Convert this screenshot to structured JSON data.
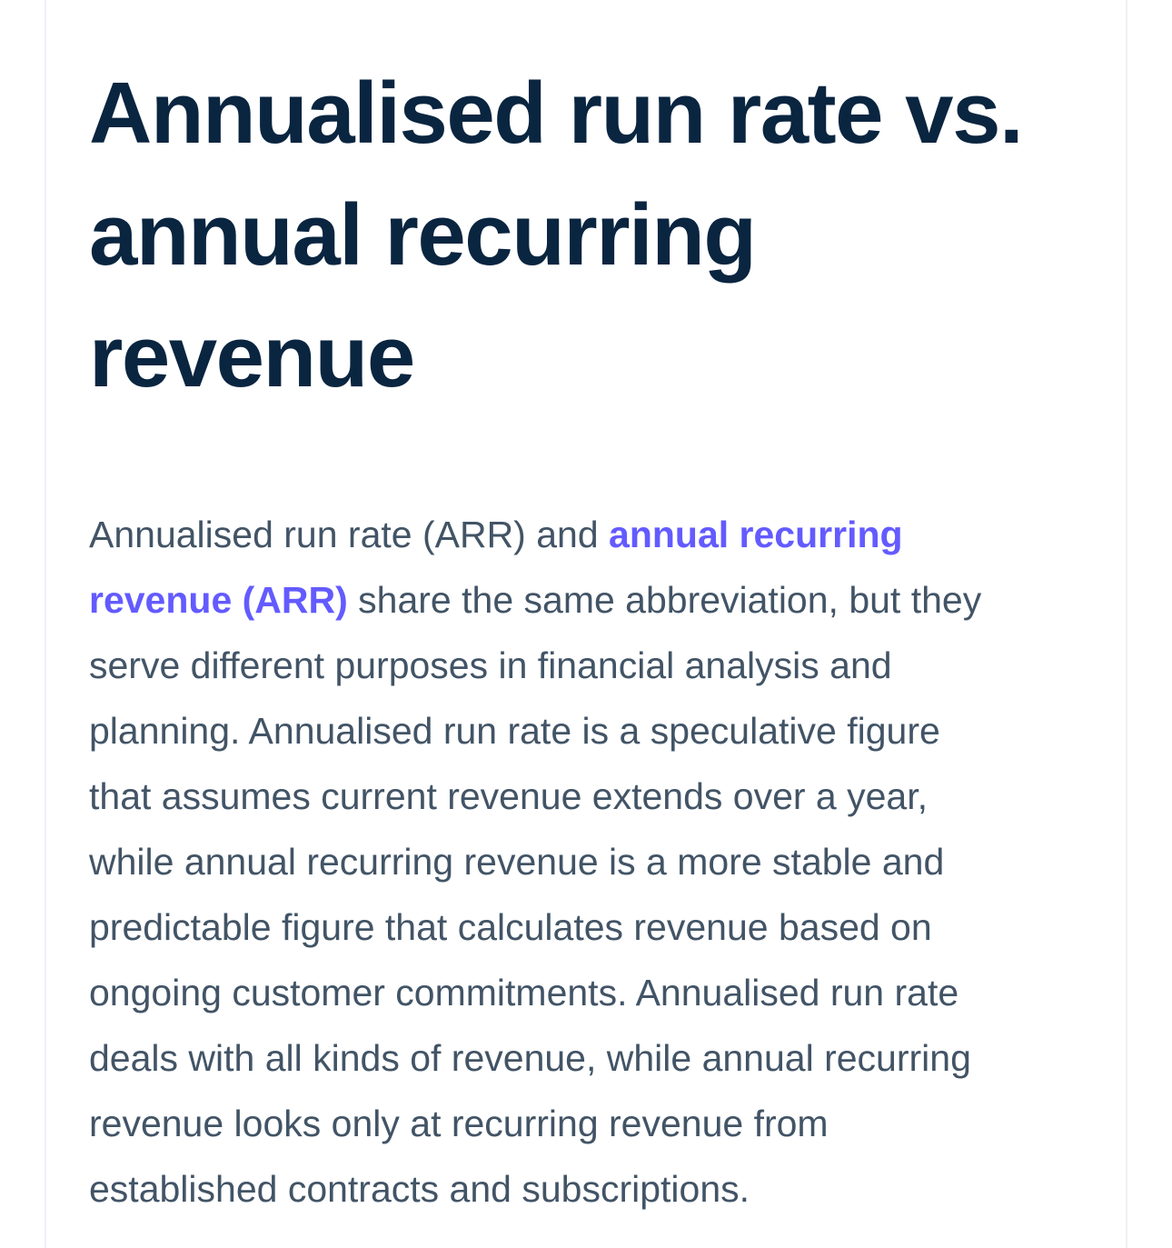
{
  "article": {
    "title_lines": [
      "Annualised run rate vs.",
      "annual recurring",
      "revenue"
    ],
    "paragraph": {
      "l1_text": "Annualised run rate (ARR) and ",
      "link_part1": "annual recurring",
      "link_part2": "revenue (ARR)",
      "l2_text": " share the same abbreviation, but they",
      "lines": [
        "serve different purposes in financial analysis and",
        "planning. Annualised run rate is a speculative figure",
        "that assumes current revenue extends over a year,",
        "while annual recurring revenue is a more stable and",
        "predictable figure that calculates revenue based on",
        "ongoing customer commitments. Annualised run rate",
        "deals with all kinds of revenue, while annual recurring",
        "revenue looks only at recurring revenue from",
        "established contracts and subscriptions."
      ]
    }
  },
  "colors": {
    "heading": "#0a2540",
    "body": "#425466",
    "link": "#635bff",
    "frame_border": "#eef0f4"
  }
}
